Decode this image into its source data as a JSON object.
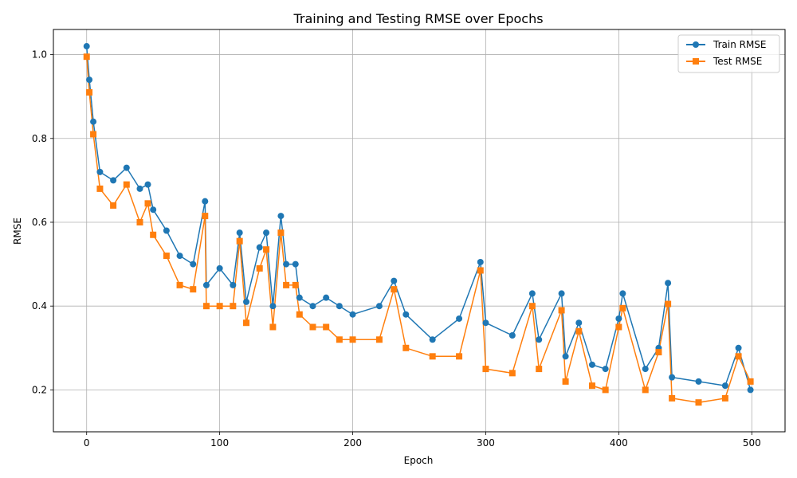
{
  "chart_data": {
    "type": "line",
    "title": "Training and Testing RMSE over Epochs",
    "xlabel": "Epoch",
    "ylabel": "RMSE",
    "xlim": [
      -25,
      525
    ],
    "ylim": [
      0.1,
      1.06
    ],
    "xticks": [
      0,
      100,
      200,
      300,
      400,
      500
    ],
    "yticks": [
      0.2,
      0.4,
      0.6,
      0.8,
      1.0
    ],
    "xtick_labels": [
      "0",
      "100",
      "200",
      "300",
      "400",
      "500"
    ],
    "ytick_labels": [
      "0.2",
      "0.4",
      "0.6",
      "0.8",
      "1.0"
    ],
    "grid": true,
    "legend_position": "upper-right",
    "series": [
      {
        "name": "Train RMSE",
        "color": "#1f77b4",
        "marker": "circle",
        "x": [
          0,
          2,
          5,
          10,
          20,
          30,
          40,
          46,
          50,
          60,
          70,
          80,
          89,
          90,
          100,
          110,
          115,
          120,
          130,
          135,
          140,
          146,
          150,
          157,
          160,
          170,
          180,
          190,
          200,
          220,
          231,
          240,
          260,
          280,
          296,
          300,
          320,
          335,
          340,
          357,
          360,
          370,
          380,
          390,
          400,
          403,
          420,
          430,
          437,
          440,
          460,
          480,
          490,
          499
        ],
        "y": [
          1.02,
          0.94,
          0.84,
          0.72,
          0.7,
          0.73,
          0.68,
          0.69,
          0.63,
          0.58,
          0.52,
          0.5,
          0.65,
          0.45,
          0.49,
          0.45,
          0.575,
          0.41,
          0.54,
          0.575,
          0.4,
          0.615,
          0.5,
          0.5,
          0.42,
          0.4,
          0.42,
          0.4,
          0.38,
          0.4,
          0.46,
          0.38,
          0.32,
          0.37,
          0.505,
          0.36,
          0.33,
          0.43,
          0.32,
          0.43,
          0.28,
          0.36,
          0.26,
          0.25,
          0.37,
          0.43,
          0.25,
          0.3,
          0.455,
          0.23,
          0.22,
          0.21,
          0.3,
          0.2
        ]
      },
      {
        "name": "Test RMSE",
        "color": "#ff7f0e",
        "marker": "square",
        "x": [
          0,
          2,
          5,
          10,
          20,
          30,
          40,
          46,
          50,
          60,
          70,
          80,
          89,
          90,
          100,
          110,
          115,
          120,
          130,
          135,
          140,
          146,
          150,
          157,
          160,
          170,
          180,
          190,
          200,
          220,
          231,
          240,
          260,
          280,
          296,
          300,
          320,
          335,
          340,
          357,
          360,
          370,
          380,
          390,
          400,
          403,
          420,
          430,
          437,
          440,
          460,
          480,
          490,
          499
        ],
        "y": [
          0.995,
          0.91,
          0.81,
          0.68,
          0.64,
          0.69,
          0.6,
          0.645,
          0.57,
          0.52,
          0.45,
          0.44,
          0.615,
          0.4,
          0.4,
          0.4,
          0.555,
          0.36,
          0.49,
          0.535,
          0.35,
          0.575,
          0.45,
          0.45,
          0.38,
          0.35,
          0.35,
          0.32,
          0.32,
          0.32,
          0.44,
          0.3,
          0.28,
          0.28,
          0.485,
          0.25,
          0.24,
          0.4,
          0.25,
          0.39,
          0.22,
          0.34,
          0.21,
          0.2,
          0.35,
          0.395,
          0.2,
          0.29,
          0.405,
          0.18,
          0.17,
          0.18,
          0.28,
          0.22
        ]
      }
    ]
  }
}
